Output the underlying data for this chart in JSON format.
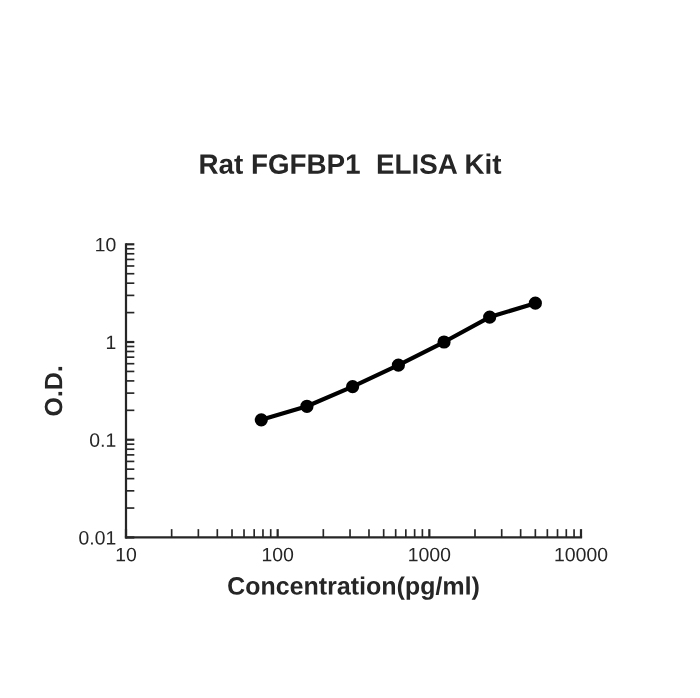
{
  "chart_data": {
    "type": "line",
    "title": "Rat FGFBP1  ELISA Kit",
    "xlabel": "Concentration(pg/ml)",
    "ylabel": "O.D.",
    "x": [
      78,
      156,
      312,
      625,
      1250,
      2500,
      5000
    ],
    "series": [
      {
        "color": "#000000",
        "values": [
          0.16,
          0.22,
          0.35,
          0.58,
          1.0,
          1.8,
          2.5
        ]
      }
    ],
    "log": "xy",
    "xlim": [
      10,
      10000
    ],
    "ylim": [
      0.01,
      10
    ],
    "xticks": [
      10,
      100,
      1000,
      10000
    ],
    "yticks": [
      0.01,
      0.1,
      1,
      10
    ],
    "marker": "circle",
    "line_style": "solid",
    "grid": false
  }
}
